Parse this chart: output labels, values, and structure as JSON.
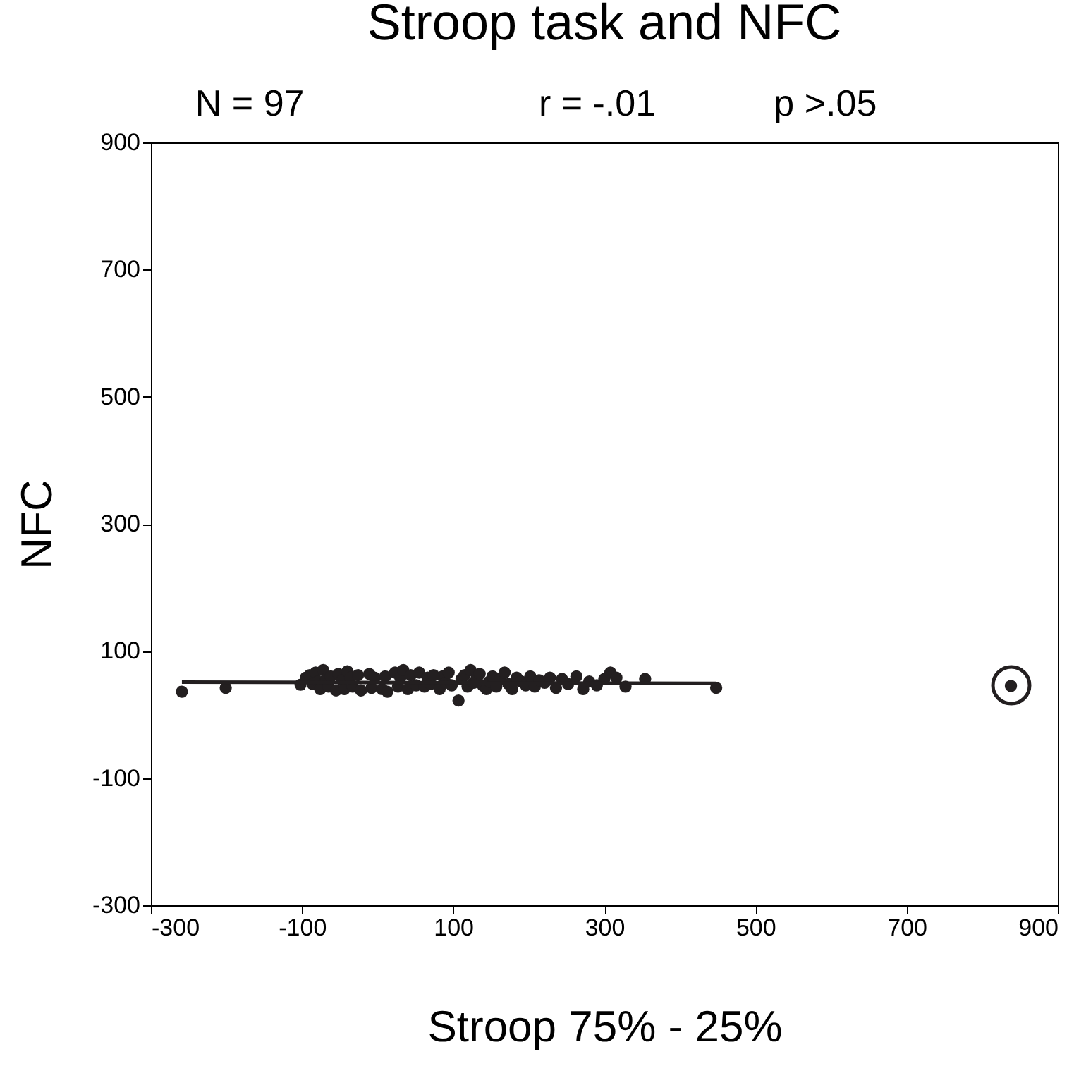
{
  "chart_data": {
    "type": "scatter",
    "title": "Stroop task and NFC",
    "xlabel": "Stroop 75% - 25%",
    "ylabel": "NFC",
    "annotations": [
      "N = 97",
      "r = -.01",
      "p >.05"
    ],
    "xlim": [
      -300,
      900
    ],
    "xticks": [
      -300,
      -100,
      100,
      300,
      500,
      700,
      900
    ],
    "ylim": [
      -300,
      900
    ],
    "yticks": [
      -300,
      -100,
      100,
      300,
      500,
      700,
      900
    ],
    "marker": "circle",
    "series": [
      {
        "color": "#231f20",
        "x": [
          -259,
          -201,
          -102,
          -95,
          -90,
          -86,
          -82,
          -79,
          -76,
          -72,
          -68,
          -65,
          -62,
          -55,
          -52,
          -47,
          -44,
          -40,
          -36,
          -33,
          -26,
          -22,
          -11,
          -8,
          -4,
          6,
          10,
          13,
          23,
          27,
          30,
          34,
          40,
          44,
          51,
          55,
          62,
          66,
          70,
          74,
          82,
          86,
          90,
          94,
          98,
          107,
          111,
          115,
          119,
          123,
          127,
          131,
          135,
          139,
          144,
          148,
          152,
          157,
          162,
          168,
          173,
          178,
          184,
          190,
          196,
          202,
          208,
          214,
          221,
          228,
          236,
          244,
          252,
          263,
          272,
          280,
          290,
          300,
          308,
          316,
          328,
          354,
          448,
          838
        ],
        "values": [
          36,
          42,
          47,
          58,
          62,
          48,
          66,
          52,
          40,
          70,
          56,
          44,
          60,
          38,
          64,
          54,
          40,
          68,
          58,
          44,
          62,
          38,
          64,
          42,
          58,
          40,
          60,
          36,
          66,
          44,
          58,
          70,
          40,
          62,
          46,
          66,
          44,
          58,
          48,
          62,
          40,
          60,
          50,
          66,
          46,
          22,
          56,
          62,
          44,
          70,
          50,
          58,
          64,
          46,
          40,
          52,
          60,
          44,
          56,
          66,
          48,
          40,
          58,
          52,
          46,
          60,
          44,
          54,
          50,
          58,
          42,
          56,
          48,
          60,
          40,
          52,
          46,
          56,
          66,
          58,
          44,
          56,
          42,
          45
        ]
      },
      {
        "type": "line",
        "marker": "none",
        "color": "#231f20",
        "x": [
          -259,
          448
        ],
        "values": [
          51,
          49
        ]
      }
    ]
  }
}
